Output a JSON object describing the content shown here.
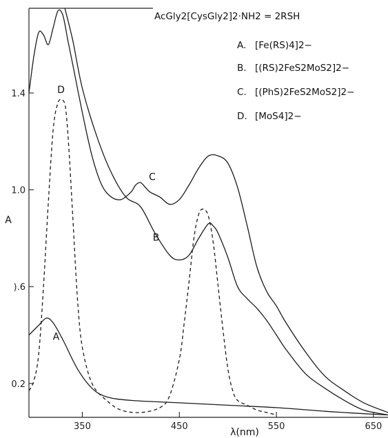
{
  "chart_data": {
    "type": "line",
    "xlabel": "λ(nm)",
    "ylabel": "A",
    "xlim": [
      295,
      665
    ],
    "ylim": [
      0.06,
      1.75
    ],
    "x_ticks": [
      {
        "value": 350,
        "label": "350"
      },
      {
        "value": 450,
        "label": "450"
      },
      {
        "value": 550,
        "label": "550"
      },
      {
        "value": 650,
        "label": "650"
      }
    ],
    "y_ticks": [
      {
        "value": 0.2,
        "label": "0.2"
      },
      {
        "value": 0.6,
        "label": ").6"
      },
      {
        "value": 1.0,
        "label": "1.0"
      },
      {
        "value": 1.4,
        "label": "1.4"
      }
    ],
    "grid": false,
    "legend_position": "top-right",
    "legend_title": "AcGly2[CysGly2]2·NH2 = 2RSH",
    "legend_items": [
      {
        "key": "A.",
        "text": "[Fe(RS)4]2−"
      },
      {
        "key": "B.",
        "text": "[(RS)2FeS2MoS2]2−"
      },
      {
        "key": "C.",
        "text": "[(PhS)2FeS2MoS2]2−"
      },
      {
        "key": "D.",
        "text": "[MoS4]2−"
      }
    ],
    "series": [
      {
        "name": "A",
        "style": "solid",
        "x": [
          295,
          305,
          313,
          320,
          330,
          345,
          360,
          375,
          400,
          450,
          500,
          550,
          600,
          620,
          640,
          665
        ],
        "y": [
          0.4,
          0.44,
          0.47,
          0.45,
          0.38,
          0.26,
          0.18,
          0.145,
          0.13,
          0.12,
          0.11,
          0.1,
          0.085,
          0.08,
          0.075,
          0.07
        ]
      },
      {
        "name": "B",
        "style": "solid",
        "x": [
          332,
          340,
          350,
          365,
          380,
          395,
          410,
          425,
          440,
          450,
          460,
          470,
          480,
          485,
          490,
          500,
          510,
          520,
          530,
          540,
          550,
          560,
          580,
          600,
          620,
          640,
          665
        ],
        "y": [
          1.75,
          1.62,
          1.42,
          1.22,
          1.07,
          0.97,
          0.93,
          0.82,
          0.73,
          0.71,
          0.73,
          0.8,
          0.86,
          0.85,
          0.82,
          0.72,
          0.6,
          0.55,
          0.51,
          0.46,
          0.4,
          0.34,
          0.24,
          0.18,
          0.13,
          0.09,
          0.07
        ]
      },
      {
        "name": "C",
        "style": "solid",
        "x": [
          295,
          300,
          305,
          310,
          315,
          320,
          325,
          330,
          335,
          340,
          350,
          360,
          370,
          380,
          390,
          400,
          405,
          410,
          415,
          420,
          430,
          440,
          450,
          460,
          470,
          480,
          490,
          500,
          510,
          520,
          530,
          540,
          550,
          560,
          580,
          600,
          620,
          640,
          665
        ],
        "y": [
          1.4,
          1.55,
          1.65,
          1.64,
          1.6,
          1.67,
          1.74,
          1.72,
          1.62,
          1.52,
          1.32,
          1.14,
          1.02,
          0.97,
          0.96,
          0.99,
          1.02,
          1.03,
          1.01,
          0.99,
          0.97,
          0.94,
          0.96,
          1.02,
          1.09,
          1.14,
          1.14,
          1.11,
          1.01,
          0.85,
          0.68,
          0.58,
          0.52,
          0.45,
          0.33,
          0.23,
          0.17,
          0.12,
          0.08
        ]
      },
      {
        "name": "D",
        "style": "dashed",
        "x": [
          295,
          300,
          305,
          310,
          315,
          320,
          325,
          330,
          333,
          336,
          340,
          345,
          350,
          360,
          375,
          390,
          410,
          430,
          440,
          450,
          455,
          460,
          465,
          470,
          475,
          480,
          485,
          490,
          495,
          500,
          505,
          510,
          520,
          530,
          540,
          550
        ],
        "y": [
          0.17,
          0.21,
          0.32,
          0.6,
          0.95,
          1.25,
          1.36,
          1.37,
          1.33,
          1.18,
          0.9,
          0.55,
          0.35,
          0.2,
          0.13,
          0.09,
          0.08,
          0.1,
          0.15,
          0.3,
          0.45,
          0.62,
          0.8,
          0.9,
          0.92,
          0.89,
          0.78,
          0.6,
          0.42,
          0.26,
          0.17,
          0.13,
          0.11,
          0.09,
          0.08,
          0.07
        ]
      }
    ],
    "curve_labels": [
      {
        "series": "A",
        "text": "A",
        "x": 323,
        "y": 0.38
      },
      {
        "series": "B",
        "text": "B",
        "x": 426,
        "y": 0.79
      },
      {
        "series": "C",
        "text": "C",
        "x": 422,
        "y": 1.04
      },
      {
        "series": "D",
        "text": "D",
        "x": 328,
        "y": 1.4
      }
    ]
  }
}
